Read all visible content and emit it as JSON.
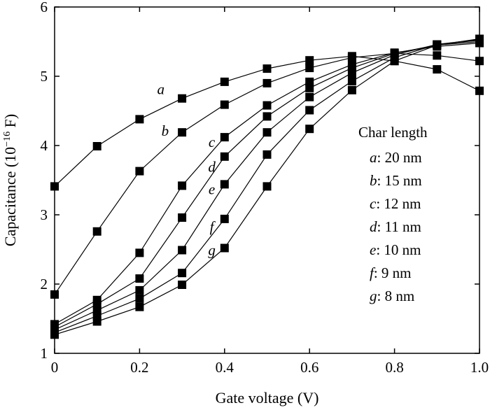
{
  "chart_data": {
    "type": "line",
    "xlabel": "Gate voltage (V)",
    "ylabel": {
      "text": "Capacitance (10",
      "exponent": "−16",
      "unit": " F)"
    },
    "xlim": [
      0,
      1.0
    ],
    "ylim": [
      1,
      6
    ],
    "xticks": [
      "0",
      "0.2",
      "0.4",
      "0.6",
      "0.8",
      "1.0"
    ],
    "yticks": [
      "1",
      "2",
      "3",
      "4",
      "5",
      "6"
    ],
    "grid": false,
    "x": [
      0,
      0.1,
      0.2,
      0.3,
      0.4,
      0.5,
      0.6,
      0.7,
      0.8,
      0.9,
      1.0
    ],
    "series": [
      {
        "name": "a",
        "values": [
          3.41,
          3.99,
          4.38,
          4.68,
          4.92,
          5.11,
          5.23,
          5.29,
          5.22,
          5.1,
          4.79
        ]
      },
      {
        "name": "b",
        "values": [
          1.85,
          2.76,
          3.63,
          4.19,
          4.59,
          4.9,
          5.12,
          5.27,
          5.33,
          5.3,
          5.22
        ]
      },
      {
        "name": "c",
        "values": [
          1.42,
          1.77,
          2.45,
          3.42,
          4.12,
          4.58,
          4.92,
          5.17,
          5.34,
          5.43,
          5.48
        ]
      },
      {
        "name": "d",
        "values": [
          1.38,
          1.71,
          2.08,
          2.96,
          3.84,
          4.42,
          4.83,
          5.12,
          5.33,
          5.45,
          5.5
        ]
      },
      {
        "name": "e",
        "values": [
          1.34,
          1.62,
          1.91,
          2.49,
          3.44,
          4.19,
          4.7,
          5.05,
          5.31,
          5.46,
          5.52
        ]
      },
      {
        "name": "f",
        "values": [
          1.3,
          1.54,
          1.79,
          2.16,
          2.94,
          3.87,
          4.51,
          4.93,
          5.27,
          5.46,
          5.53
        ]
      },
      {
        "name": "g",
        "values": [
          1.27,
          1.46,
          1.67,
          1.99,
          2.52,
          3.41,
          4.24,
          4.8,
          5.22,
          5.45,
          5.54
        ]
      }
    ],
    "curve_labels": [
      {
        "series": "a",
        "text": "a",
        "x": 0.25,
        "y": 4.74
      },
      {
        "series": "b",
        "text": "b",
        "x": 0.26,
        "y": 4.14
      },
      {
        "series": "c",
        "text": "c",
        "x": 0.37,
        "y": 3.98
      },
      {
        "series": "d",
        "text": "d",
        "x": 0.37,
        "y": 3.62
      },
      {
        "series": "e",
        "text": "e",
        "x": 0.37,
        "y": 3.3
      },
      {
        "series": "f",
        "text": "f",
        "x": 0.37,
        "y": 2.76
      },
      {
        "series": "g",
        "text": "g",
        "x": 0.37,
        "y": 2.42
      }
    ],
    "legend": {
      "title": "Char length",
      "placement": "right",
      "entries": [
        {
          "key": "a",
          "value": ": 20 nm"
        },
        {
          "key": "b",
          "value": ": 15 nm"
        },
        {
          "key": "c",
          "value": ": 12 nm"
        },
        {
          "key": "d",
          "value": ": 11 nm"
        },
        {
          "key": "e",
          "value": ": 10 nm"
        },
        {
          "key": "f",
          "value": ": 9 nm"
        },
        {
          "key": "g",
          "value": ": 8 nm"
        }
      ]
    },
    "marker": "square",
    "line_color": "#000000",
    "marker_color": "#000000"
  }
}
